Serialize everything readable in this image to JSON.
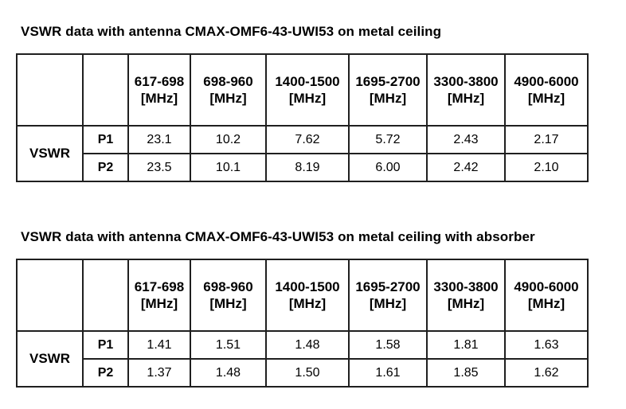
{
  "document": {
    "tables": [
      {
        "title": "VSWR data with antenna CMAX-OMF6-43-UWI53 on metal ceiling",
        "measure_label": "VSWR",
        "unit": "[MHz]",
        "bands": [
          "617-698",
          "698-960",
          "1400-1500",
          "1695-2700",
          "3300-3800",
          "4900-6000"
        ],
        "rows": [
          {
            "port": "P1",
            "values": [
              "23.1",
              "10.2",
              "7.62",
              "5.72",
              "2.43",
              "2.17"
            ]
          },
          {
            "port": "P2",
            "values": [
              "23.5",
              "10.1",
              "8.19",
              "6.00",
              "2.42",
              "2.10"
            ]
          }
        ]
      },
      {
        "title": "VSWR data with antenna CMAX-OMF6-43-UWI53 on metal ceiling with absorber",
        "measure_label": "VSWR",
        "unit": "[MHz]",
        "bands": [
          "617-698",
          "698-960",
          "1400-1500",
          "1695-2700",
          "3300-3800",
          "4900-6000"
        ],
        "rows": [
          {
            "port": "P1",
            "values": [
              "1.41",
              "1.51",
              "1.48",
              "1.58",
              "1.81",
              "1.63"
            ]
          },
          {
            "port": "P2",
            "values": [
              "1.37",
              "1.48",
              "1.50",
              "1.61",
              "1.85",
              "1.62"
            ]
          }
        ]
      }
    ]
  }
}
